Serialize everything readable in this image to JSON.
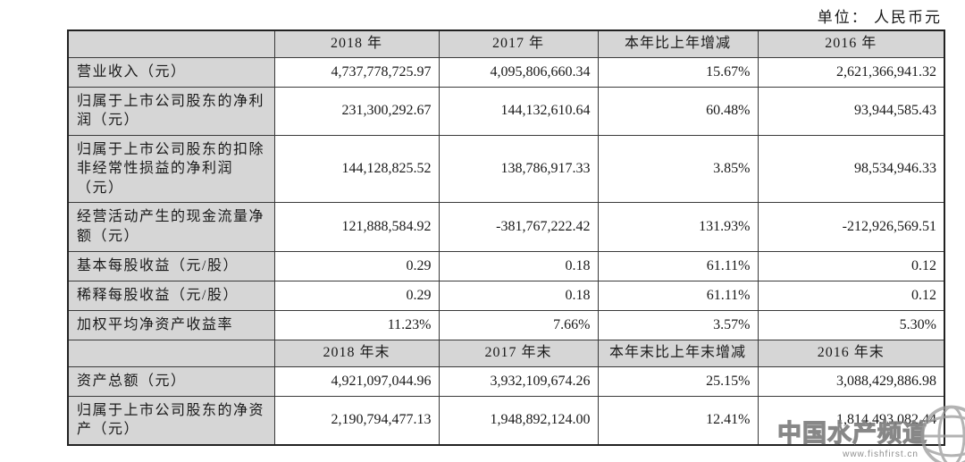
{
  "unit_label": "单位： 人民币元",
  "table": {
    "sections": [
      {
        "header": [
          "",
          "2018 年",
          "2017 年",
          "本年比上年增减",
          "2016 年"
        ],
        "rows": [
          {
            "label": "营业收入（元）",
            "values": [
              "4,737,778,725.97",
              "4,095,806,660.34",
              "15.67%",
              "2,621,366,941.32"
            ]
          },
          {
            "label": "归属于上市公司股东的净利润（元）",
            "values": [
              "231,300,292.67",
              "144,132,610.64",
              "60.48%",
              "93,944,585.43"
            ]
          },
          {
            "label": "归属于上市公司股东的扣除非经常性损益的净利润（元）",
            "values": [
              "144,128,825.52",
              "138,786,917.33",
              "3.85%",
              "98,534,946.33"
            ]
          },
          {
            "label": "经营活动产生的现金流量净额（元）",
            "values": [
              "121,888,584.92",
              "-381,767,222.42",
              "131.93%",
              "-212,926,569.51"
            ]
          },
          {
            "label": "基本每股收益（元/股）",
            "values": [
              "0.29",
              "0.18",
              "61.11%",
              "0.12"
            ]
          },
          {
            "label": "稀释每股收益（元/股）",
            "values": [
              "0.29",
              "0.18",
              "61.11%",
              "0.12"
            ]
          },
          {
            "label": "加权平均净资产收益率",
            "values": [
              "11.23%",
              "7.66%",
              "3.57%",
              "5.30%"
            ]
          }
        ]
      },
      {
        "header": [
          "",
          "2018 年末",
          "2017 年末",
          "本年末比上年末增减",
          "2016 年末"
        ],
        "rows": [
          {
            "label": "资产总额（元）",
            "values": [
              "4,921,097,044.96",
              "3,932,109,674.26",
              "25.15%",
              "3,088,429,886.98"
            ]
          },
          {
            "label": "归属于上市公司股东的净资产（元）",
            "values": [
              "2,190,794,477.13",
              "1,948,892,124.00",
              "12.41%",
              "1,814,493,082.44"
            ]
          }
        ]
      }
    ]
  },
  "watermark": {
    "text": "中国水产频道",
    "url": "www.fishfirst.cn",
    "icon": "globe-icon"
  },
  "colors": {
    "header_bg": "#d6d6d6",
    "label_bg": "#d6d6d6",
    "border": "#3a3a3a",
    "outer_border": "#222222",
    "text": "#1a1a1a",
    "watermark_gray": "#8a8a8a"
  }
}
